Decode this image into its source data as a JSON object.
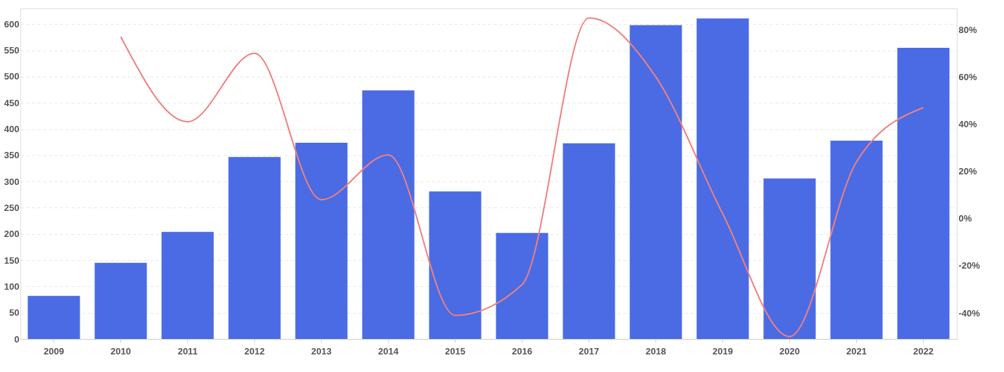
{
  "chart_data": {
    "type": "bar",
    "categories": [
      "2009",
      "2010",
      "2011",
      "2012",
      "2013",
      "2014",
      "2015",
      "2016",
      "2017",
      "2018",
      "2019",
      "2020",
      "2021",
      "2022"
    ],
    "series": [
      {
        "type": "bar",
        "color": "#4a6be3",
        "values": [
          82,
          145,
          204,
          347,
          374,
          474,
          281,
          202,
          373,
          598,
          611,
          306,
          378,
          555
        ]
      },
      {
        "type": "line",
        "axis": "y2",
        "color": "#f08080",
        "values": [
          null,
          77,
          41,
          70,
          8,
          27,
          -41,
          -28,
          85,
          60,
          2,
          -50,
          24,
          47
        ]
      }
    ],
    "ylim": [
      0,
      630
    ],
    "yticks": [
      0,
      50,
      100,
      150,
      200,
      250,
      300,
      350,
      400,
      450,
      500,
      550,
      600
    ],
    "y2lim": [
      -51,
      89
    ],
    "y2ticks": [
      {
        "value": -40,
        "label": "-40%"
      },
      {
        "value": -20,
        "label": "-20%"
      },
      {
        "value": 0,
        "label": "0%"
      },
      {
        "value": 20,
        "label": "20%"
      },
      {
        "value": 40,
        "label": "40%"
      },
      {
        "value": 60,
        "label": "60%"
      },
      {
        "value": 80,
        "label": "80%"
      }
    ],
    "grid": "y",
    "legend": false,
    "marker": "none",
    "line_style": "solid"
  }
}
